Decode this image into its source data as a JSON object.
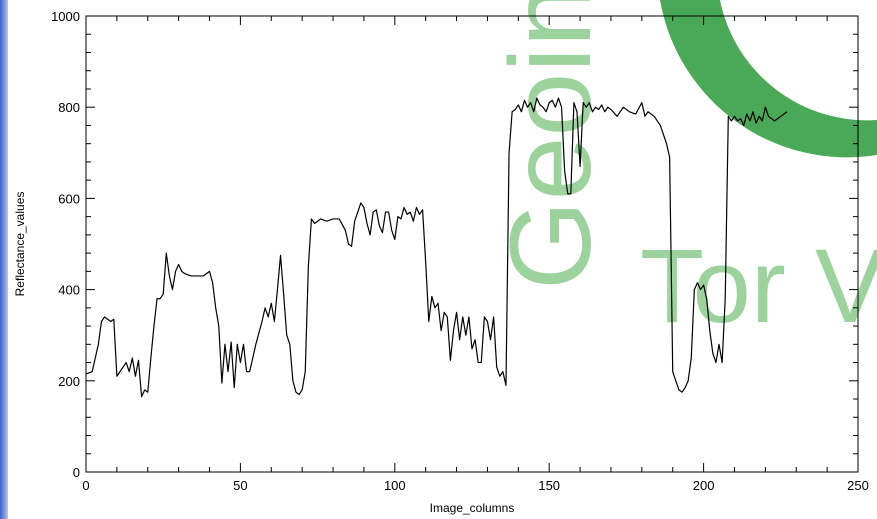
{
  "watermark": [
    "Geoin",
    "Tor V"
  ],
  "chart_data": {
    "type": "line",
    "x_label": "Image_columns",
    "y_label": "Reflectance_values",
    "xlim": [
      0,
      250
    ],
    "xticks": [
      0,
      50,
      100,
      150,
      200,
      250
    ],
    "ylim": [
      0,
      1000
    ],
    "yticks": [
      0,
      200,
      400,
      600,
      800,
      1000
    ],
    "x": [
      0,
      2,
      4,
      5,
      6,
      8,
      9,
      10,
      12,
      13,
      14,
      15,
      16,
      17,
      18,
      19,
      20,
      21,
      22,
      23,
      24,
      25,
      26,
      27,
      28,
      29,
      30,
      31,
      32,
      34,
      36,
      38,
      40,
      41,
      42,
      43,
      44,
      45,
      46,
      47,
      48,
      49,
      50,
      51,
      52,
      53,
      55,
      57,
      58,
      59,
      60,
      61,
      62,
      63,
      64,
      65,
      66,
      67,
      68,
      69,
      70,
      71,
      72,
      73,
      74,
      76,
      78,
      80,
      82,
      84,
      85,
      86,
      87,
      88,
      89,
      90,
      91,
      92,
      93,
      94,
      95,
      96,
      97,
      98,
      99,
      100,
      101,
      102,
      103,
      104,
      105,
      106,
      107,
      108,
      109,
      110,
      111,
      112,
      113,
      114,
      115,
      116,
      117,
      118,
      119,
      120,
      121,
      122,
      123,
      124,
      125,
      126,
      127,
      128,
      129,
      130,
      131,
      132,
      133,
      134,
      135,
      136,
      137,
      138,
      139,
      140,
      141,
      142,
      143,
      144,
      145,
      146,
      147,
      148,
      149,
      150,
      151,
      152,
      153,
      154,
      155,
      156,
      157,
      158,
      159,
      160,
      161,
      162,
      163,
      164,
      165,
      166,
      167,
      168,
      169,
      170,
      172,
      174,
      176,
      178,
      180,
      181,
      182,
      184,
      186,
      188,
      189,
      190,
      191,
      192,
      193,
      194,
      195,
      196,
      197,
      198,
      199,
      200,
      201,
      202,
      203,
      204,
      205,
      206,
      207,
      208,
      209,
      210,
      211,
      212,
      213,
      214,
      215,
      216,
      217,
      218,
      219,
      220,
      221,
      222,
      223,
      224,
      225,
      227
    ],
    "series": [
      {
        "color": "#000000",
        "values": [
          215,
          220,
          280,
          330,
          340,
          330,
          335,
          210,
          230,
          240,
          220,
          250,
          210,
          245,
          165,
          180,
          175,
          250,
          320,
          380,
          380,
          390,
          480,
          430,
          400,
          440,
          455,
          440,
          435,
          430,
          430,
          430,
          440,
          415,
          360,
          320,
          195,
          280,
          220,
          285,
          185,
          280,
          240,
          280,
          220,
          220,
          280,
          330,
          360,
          340,
          370,
          330,
          400,
          475,
          390,
          300,
          280,
          200,
          175,
          170,
          180,
          220,
          450,
          555,
          545,
          555,
          550,
          555,
          555,
          530,
          500,
          495,
          550,
          570,
          590,
          580,
          545,
          520,
          570,
          575,
          540,
          525,
          570,
          570,
          530,
          510,
          560,
          555,
          580,
          565,
          570,
          550,
          580,
          565,
          575,
          460,
          330,
          385,
          360,
          370,
          310,
          350,
          340,
          245,
          310,
          350,
          290,
          340,
          300,
          340,
          270,
          290,
          240,
          240,
          340,
          330,
          290,
          340,
          230,
          210,
          220,
          190,
          700,
          790,
          795,
          805,
          790,
          815,
          800,
          810,
          790,
          820,
          805,
          800,
          790,
          810,
          815,
          800,
          820,
          800,
          660,
          610,
          610,
          810,
          790,
          670,
          810,
          800,
          810,
          790,
          800,
          795,
          805,
          790,
          800,
          795,
          780,
          800,
          790,
          785,
          810,
          780,
          790,
          780,
          760,
          720,
          690,
          220,
          200,
          180,
          175,
          185,
          200,
          250,
          400,
          415,
          400,
          410,
          380,
          310,
          260,
          240,
          280,
          240,
          380,
          780,
          770,
          780,
          770,
          775,
          760,
          785,
          770,
          790,
          765,
          780,
          770,
          800,
          780,
          775,
          770,
          775,
          780,
          790
        ]
      }
    ]
  }
}
